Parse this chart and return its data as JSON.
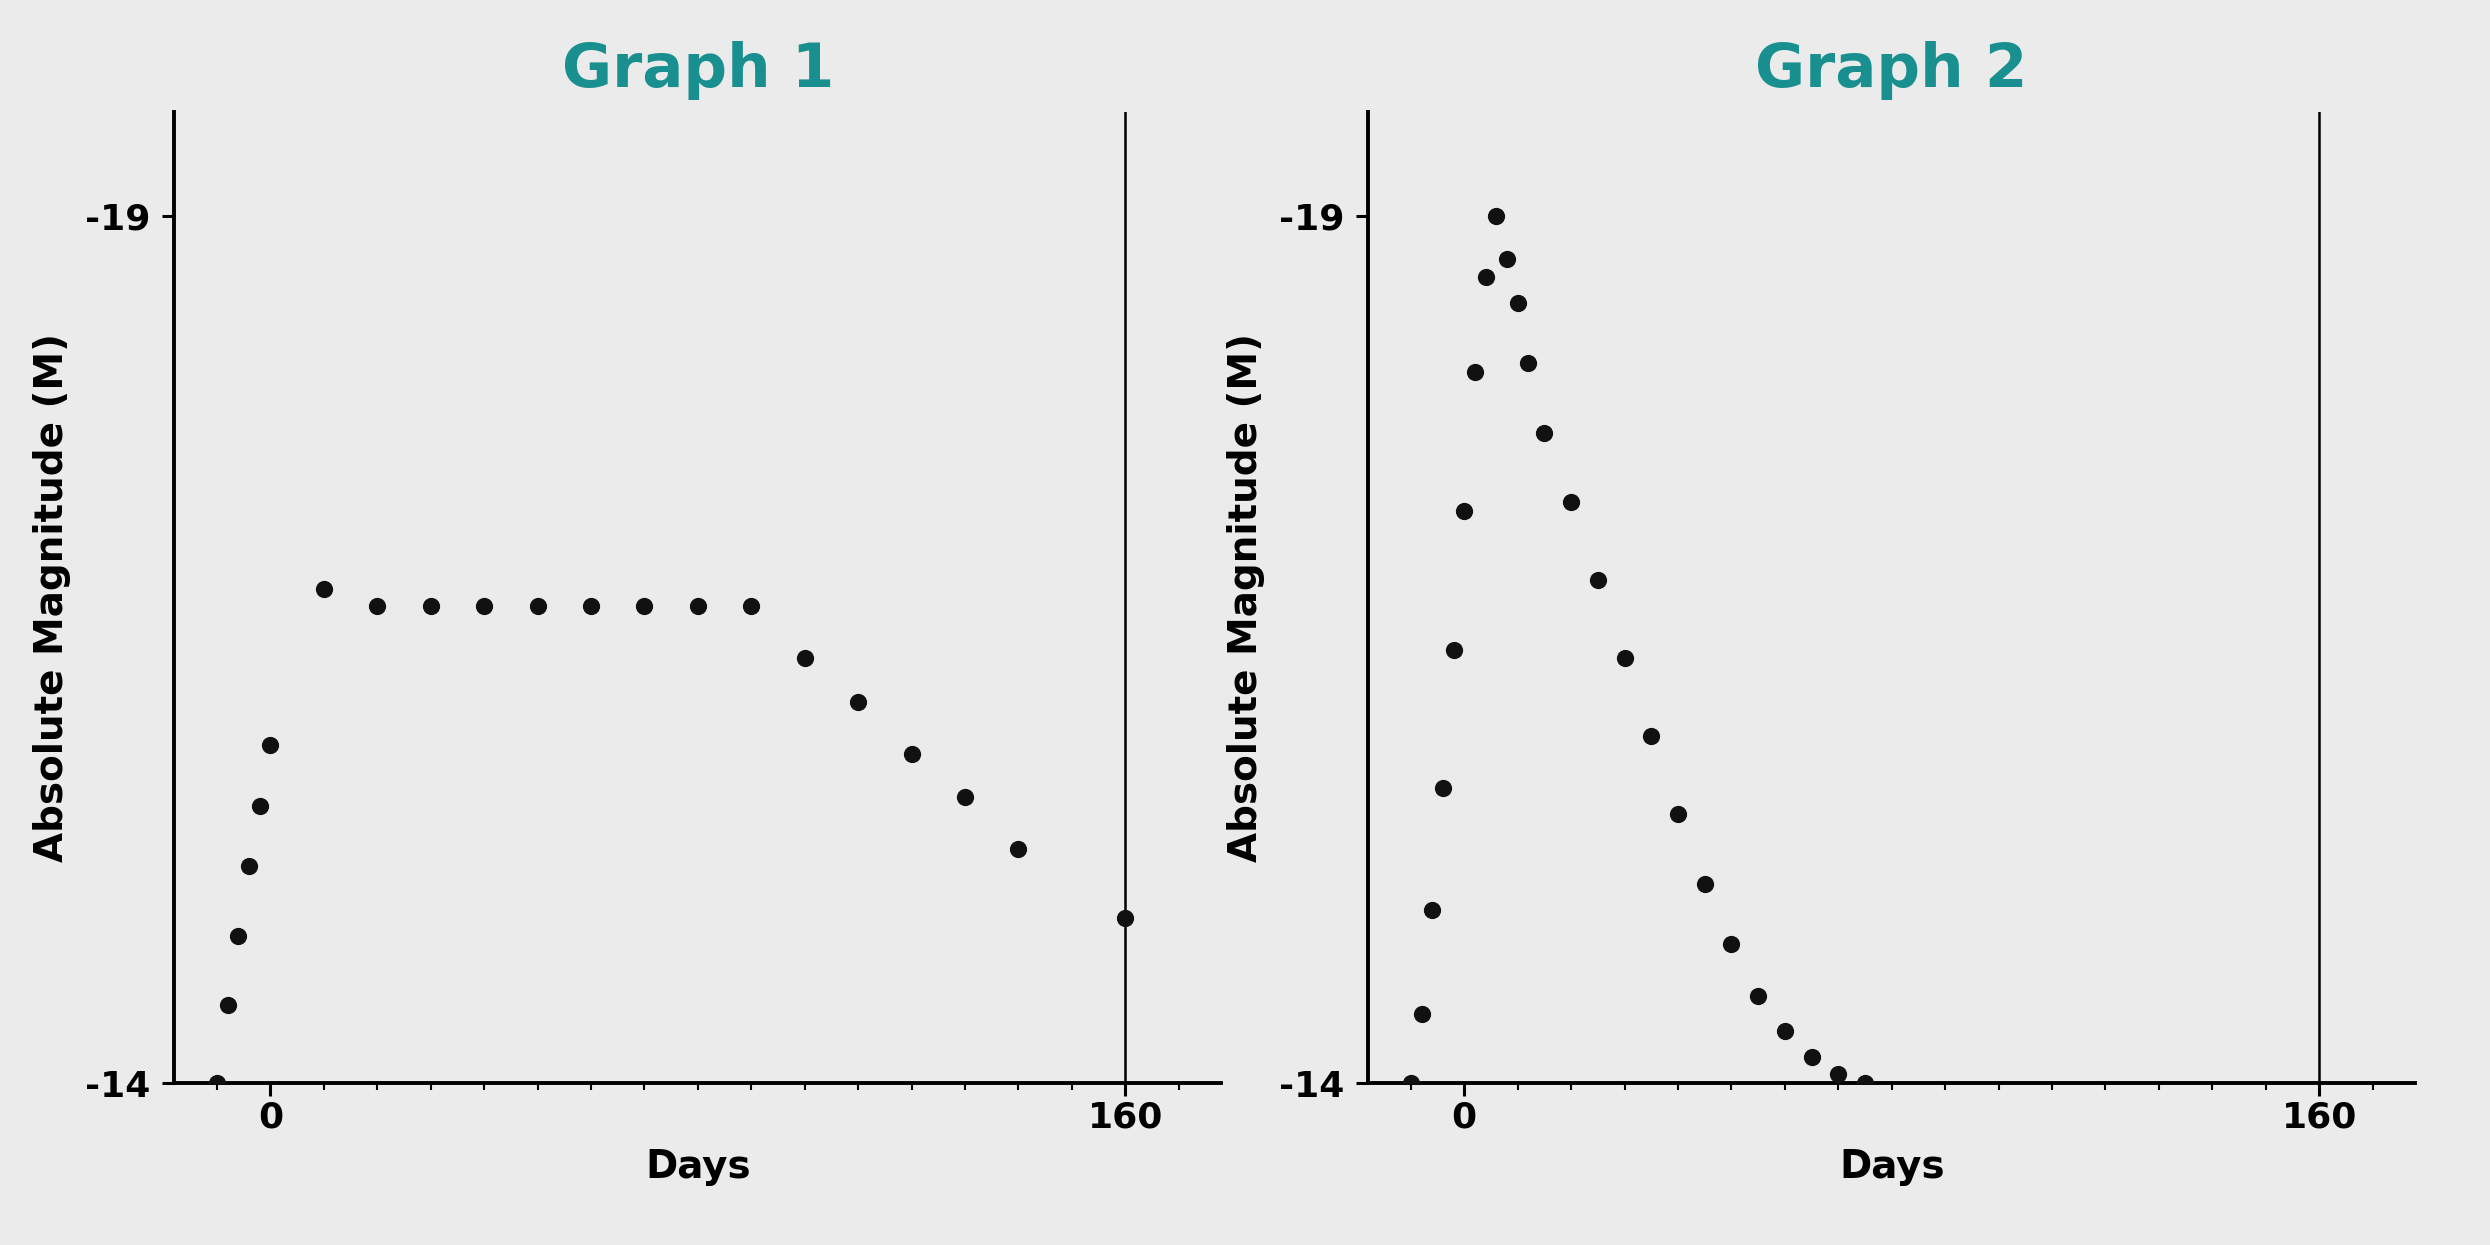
{
  "graph1_title": "Graph 1",
  "graph2_title": "Graph 2",
  "ylabel": "Absolute Magnitude (M)",
  "xlabel": "Days",
  "background_color": "#ebebeb",
  "title_color": "#1a8f8f",
  "dot_color": "#111111",
  "ylim_bottom": -14.0,
  "ylim_top": -19.6,
  "xlim": [
    -18,
    178
  ],
  "yticks": [
    -19,
    -14
  ],
  "xticks": [
    0,
    160
  ],
  "vline_x": 160,
  "graph1_x": [
    -10,
    -8,
    -6,
    -4,
    -2,
    0,
    10,
    20,
    30,
    40,
    50,
    60,
    70,
    80,
    90,
    100,
    110,
    120,
    130,
    140,
    160
  ],
  "graph1_y": [
    -14.0,
    -14.45,
    -14.85,
    -15.25,
    -15.6,
    -15.95,
    -16.85,
    -16.75,
    -16.75,
    -16.75,
    -16.75,
    -16.75,
    -16.75,
    -16.75,
    -16.75,
    -16.45,
    -16.2,
    -15.9,
    -15.65,
    -15.35,
    -14.95
  ],
  "graph2_x": [
    -10,
    -8,
    -6,
    -4,
    -2,
    0,
    2,
    4,
    6,
    8,
    10,
    12,
    15,
    20,
    25,
    30,
    35,
    40,
    45,
    50,
    55,
    60,
    65,
    70,
    75
  ],
  "graph2_y": [
    -14.0,
    -14.4,
    -15.0,
    -15.7,
    -16.5,
    -17.3,
    -18.1,
    -18.65,
    -19.0,
    -18.75,
    -18.5,
    -18.15,
    -17.75,
    -17.35,
    -16.9,
    -16.45,
    -16.0,
    -15.55,
    -15.15,
    -14.8,
    -14.5,
    -14.3,
    -14.15,
    -14.05,
    -14.0
  ],
  "dot_size": 130,
  "title_fontsize": 44,
  "axis_label_fontsize": 28,
  "tick_fontsize": 26,
  "spine_linewidth": 2.8,
  "vline_linewidth": 1.8
}
